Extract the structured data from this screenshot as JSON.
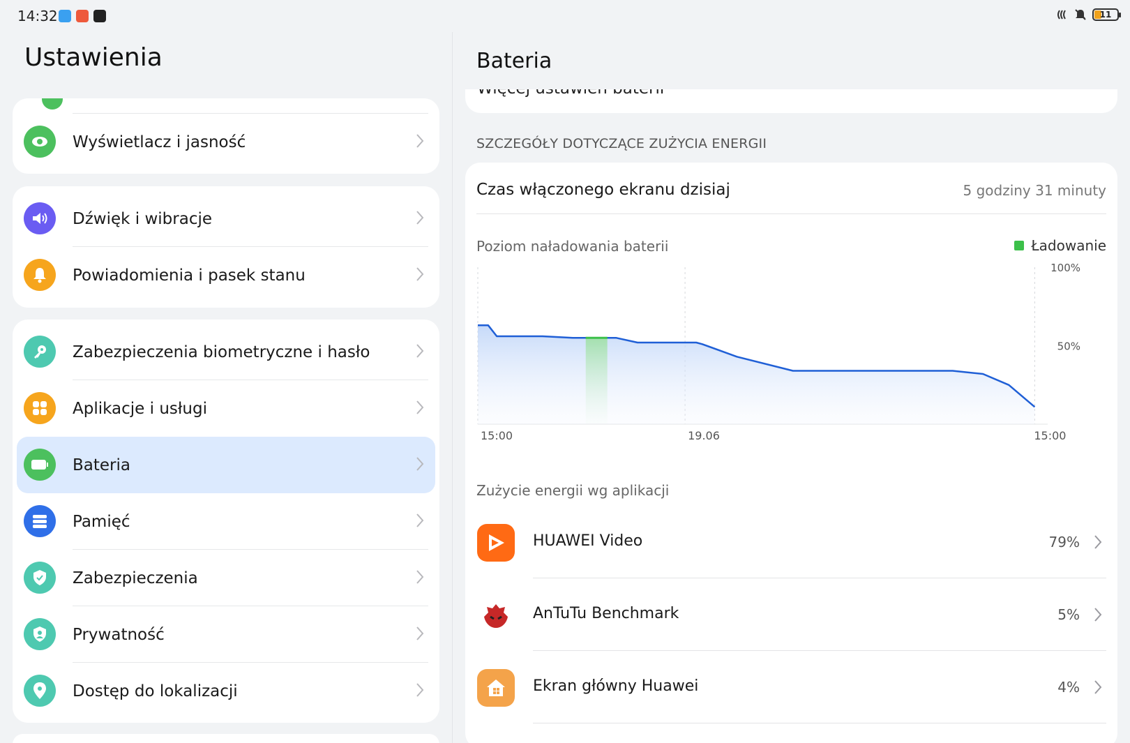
{
  "status_bar": {
    "time": "14:32",
    "battery_level": "11",
    "icons": [
      "nfc-icon",
      "mute-icon",
      "battery-icon"
    ],
    "notification_icons": [
      "notes-app-icon",
      "battery-alert-icon",
      "video-app-icon"
    ]
  },
  "left_pane": {
    "title": "Ustawienia",
    "groups": [
      {
        "items": [
          {
            "label": "Wyświetlacz i jasność",
            "icon": "eye-icon",
            "color": "#4cc05e"
          }
        ]
      },
      {
        "items": [
          {
            "label": "Dźwięk i wibracje",
            "icon": "speaker-icon",
            "color": "#6a5cf2"
          },
          {
            "label": "Powiadomienia i pasek stanu",
            "icon": "bell-icon",
            "color": "#f6a51d"
          }
        ]
      },
      {
        "items": [
          {
            "label": "Zabezpieczenia biometryczne i hasło",
            "icon": "key-icon",
            "color": "#4ec9b0"
          },
          {
            "label": "Aplikacje i usługi",
            "icon": "apps-grid-icon",
            "color": "#f6a51d"
          },
          {
            "label": "Bateria",
            "icon": "battery-icon",
            "color": "#4cc05e",
            "selected": true
          },
          {
            "label": "Pamięć",
            "icon": "storage-icon",
            "color": "#2f6fe8"
          },
          {
            "label": "Zabezpieczenia",
            "icon": "shield-icon",
            "color": "#4ec9b0"
          },
          {
            "label": "Prywatność",
            "icon": "privacy-icon",
            "color": "#4ec9b0"
          },
          {
            "label": "Dostęp do lokalizacji",
            "icon": "location-pin-icon",
            "color": "#4ec9b0"
          }
        ]
      }
    ]
  },
  "right_pane": {
    "title": "Bateria",
    "cut_off_item": "Więcej ustawień baterii",
    "section_heading": "SZCZEGÓŁY DOTYCZĄCE ZUŻYCIA ENERGII",
    "screen_time": {
      "label": "Czas włączonego ekranu dzisiaj",
      "value": "5 godziny 31 minuty"
    },
    "chart_title": "Poziom naładowania baterii",
    "legend_label": "Ładowanie",
    "legend_color": "#3cc04a",
    "apps_heading": "Zużycie energii wg aplikacji",
    "apps": [
      {
        "name": "HUAWEI Video",
        "percent": "79%",
        "icon": "huawei-video-icon"
      },
      {
        "name": "AnTuTu Benchmark",
        "percent": "5%",
        "icon": "antutu-icon"
      },
      {
        "name": "Ekran główny Huawei",
        "percent": "4%",
        "icon": "home-icon"
      }
    ]
  },
  "chart_data": {
    "type": "area",
    "x_tick_labels": [
      "15:00",
      "19.06",
      "15:00"
    ],
    "y_tick_labels": [
      "100%",
      "50%"
    ],
    "ylim": [
      0,
      100
    ],
    "line_color": "#1f5fd6",
    "charging_color": "#3cc04a",
    "series": [
      {
        "x": [
          0,
          1.2,
          2.2,
          7.5,
          11.0,
          12.5,
          13.2,
          15.0,
          16.0,
          18.5,
          23.0,
          25.3,
          26.0,
          30.0,
          36.5,
          43.0,
          47.5,
          49.0,
          55.0,
          58.5,
          61.5,
          64.5
        ],
        "values": [
          63,
          63,
          56,
          56,
          55,
          55,
          55,
          55,
          55,
          52,
          52,
          52,
          51,
          43,
          34,
          34,
          34,
          34,
          34,
          32,
          25,
          11
        ]
      }
    ],
    "charging_segment": [
      12.5,
      15.0
    ],
    "x_range": [
      0,
      66
    ],
    "x_tick_positions": [
      0,
      24,
      64.5
    ],
    "grid": true
  }
}
